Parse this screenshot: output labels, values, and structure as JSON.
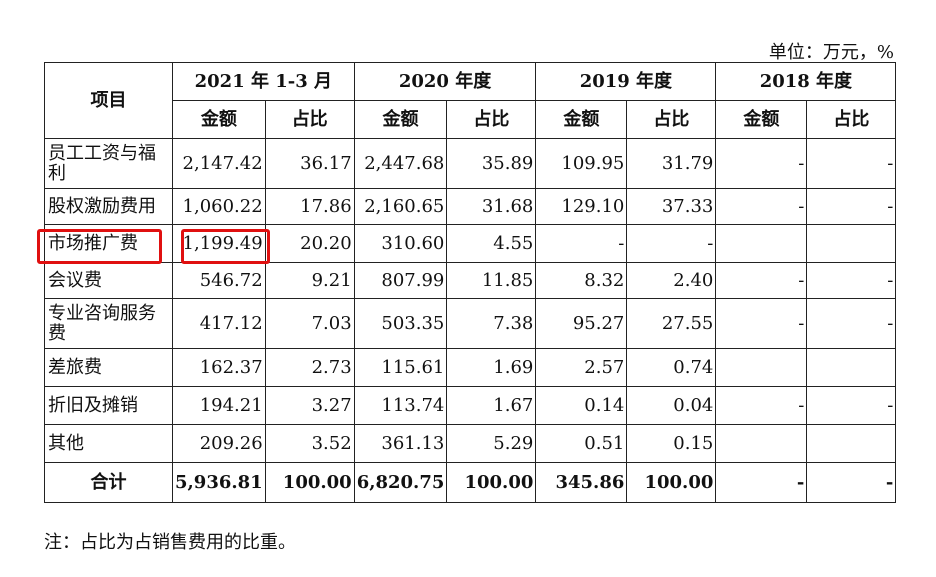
{
  "unit_label": "单位：万元，%",
  "header": {
    "item": "项目",
    "periods": [
      "2021 年 1-3 月",
      "2020 年度",
      "2019 年度",
      "2018 年度"
    ],
    "amount": "金额",
    "ratio": "占比"
  },
  "rows": [
    {
      "name": "员工工资与福利",
      "v": [
        "2,147.42",
        "36.17",
        "2,447.68",
        "35.89",
        "109.95",
        "31.79",
        "-",
        "-"
      ]
    },
    {
      "name": "股权激励费用",
      "v": [
        "1,060.22",
        "17.86",
        "2,160.65",
        "31.68",
        "129.10",
        "37.33",
        "-",
        "-"
      ]
    },
    {
      "name": "市场推广费",
      "v": [
        "1,199.49",
        "20.20",
        "310.60",
        "4.55",
        "-",
        "-",
        "",
        ""
      ]
    },
    {
      "name": "会议费",
      "v": [
        "546.72",
        "9.21",
        "807.99",
        "11.85",
        "8.32",
        "2.40",
        "-",
        "-"
      ]
    },
    {
      "name": "专业咨询服务费",
      "v": [
        "417.12",
        "7.03",
        "503.35",
        "7.38",
        "95.27",
        "27.55",
        "-",
        "-"
      ]
    },
    {
      "name": "差旅费",
      "v": [
        "162.37",
        "2.73",
        "115.61",
        "1.69",
        "2.57",
        "0.74",
        "",
        ""
      ]
    },
    {
      "name": "折旧及摊销",
      "v": [
        "194.21",
        "3.27",
        "113.74",
        "1.67",
        "0.14",
        "0.04",
        "-",
        "-"
      ]
    },
    {
      "name": "其他",
      "v": [
        "209.26",
        "3.52",
        "361.13",
        "5.29",
        "0.51",
        "0.15",
        "",
        ""
      ]
    }
  ],
  "total": {
    "name": "合计",
    "v": [
      "5,936.81",
      "100.00",
      "6,820.75",
      "100.00",
      "345.86",
      "100.00",
      "-",
      "-"
    ]
  },
  "note": "注：占比为占销售费用的比重。"
}
